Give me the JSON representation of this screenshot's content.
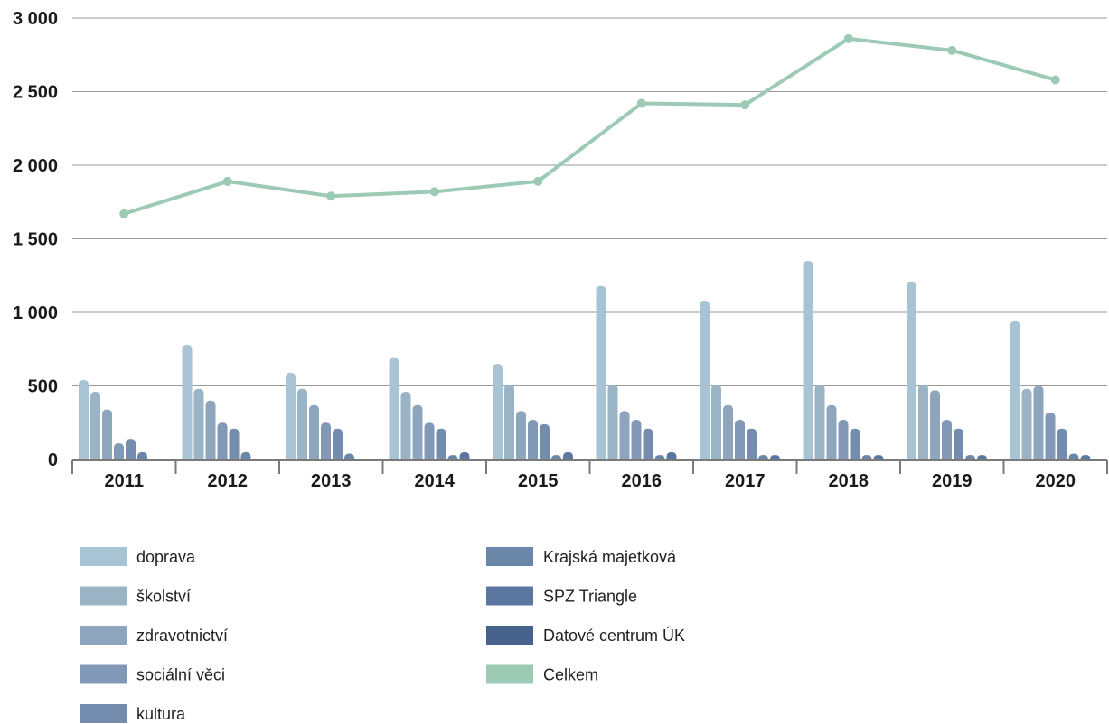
{
  "chart_data": {
    "type": "bar",
    "categories": [
      "2011",
      "2012",
      "2013",
      "2014",
      "2015",
      "2016",
      "2017",
      "2018",
      "2019",
      "2020"
    ],
    "y_tick_labels": [
      "0",
      "500",
      "1 000",
      "1 500",
      "2 000",
      "2 500",
      "3 000"
    ],
    "y_ticks": [
      0,
      500,
      1000,
      1500,
      2000,
      2500,
      3000
    ],
    "ylim": [
      0,
      3000
    ],
    "grid": true,
    "legend_position": "bottom",
    "series": [
      {
        "name": "doprava",
        "color": "#a8c3d3",
        "values": [
          540,
          780,
          590,
          690,
          650,
          1180,
          1080,
          1350,
          1210,
          940
        ]
      },
      {
        "name": "školství",
        "color": "#9ab4c6",
        "values": [
          460,
          480,
          480,
          460,
          510,
          510,
          510,
          510,
          510,
          480
        ]
      },
      {
        "name": "zdravotnictví",
        "color": "#8ea6bd",
        "values": [
          340,
          400,
          370,
          370,
          330,
          330,
          370,
          370,
          470,
          500
        ]
      },
      {
        "name": "sociální věci",
        "color": "#8199b7",
        "values": [
          110,
          250,
          250,
          250,
          270,
          270,
          270,
          270,
          270,
          320
        ]
      },
      {
        "name": "kultura",
        "color": "#748cad",
        "values": [
          140,
          210,
          210,
          210,
          240,
          210,
          210,
          210,
          210,
          210
        ]
      },
      {
        "name": "Krajská majetková",
        "color": "#6a87aa",
        "values": [
          50,
          50,
          40,
          30,
          30,
          30,
          30,
          30,
          30,
          40
        ]
      },
      {
        "name": "SPZ Triangle",
        "color": "#5b77a0",
        "values": [
          0,
          0,
          0,
          50,
          50,
          50,
          30,
          30,
          30,
          30
        ]
      },
      {
        "name": "Datové centrum ÚK",
        "color": "#48628e",
        "values": [
          0,
          0,
          0,
          0,
          0,
          0,
          0,
          0,
          0,
          0
        ]
      },
      {
        "name": "Celkem",
        "color": "#9ccab5",
        "type": "line",
        "values": [
          1670,
          1890,
          1790,
          1820,
          1890,
          2420,
          2410,
          2860,
          2780,
          2580
        ]
      }
    ]
  }
}
